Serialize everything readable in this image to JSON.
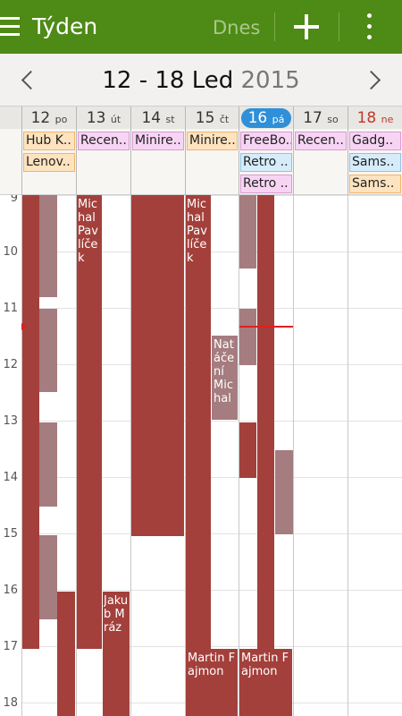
{
  "actionbar": {
    "title": "Týden",
    "today_label": "Dnes",
    "menu_icon": "hamburger-menu-icon",
    "add_icon": "plus-icon",
    "more_icon": "overflow-menu-icon",
    "background": "#4e8a16"
  },
  "range": {
    "dates": "12 - 18 Led",
    "year": "2015",
    "prev_icon": "chevron-left-icon",
    "next_icon": "chevron-right-icon"
  },
  "days": [
    {
      "num": "12",
      "wd": "po"
    },
    {
      "num": "13",
      "wd": "út"
    },
    {
      "num": "14",
      "wd": "st"
    },
    {
      "num": "15",
      "wd": "čt"
    },
    {
      "num": "16",
      "wd": "pá",
      "today": true
    },
    {
      "num": "17",
      "wd": "so"
    },
    {
      "num": "18",
      "wd": "ne",
      "sunday": true
    }
  ],
  "allday": [
    [
      {
        "label": "Hub K..",
        "color": "orange"
      },
      {
        "label": "Lenov..",
        "color": "orange"
      }
    ],
    [
      {
        "label": "Recen..",
        "color": "pink"
      }
    ],
    [
      {
        "label": "Minire..",
        "color": "pink"
      }
    ],
    [
      {
        "label": "Minire..",
        "color": "orange"
      }
    ],
    [
      {
        "label": "FreeBo..",
        "color": "pink"
      },
      {
        "label": "Retro ..",
        "color": "blue"
      },
      {
        "label": "Retro ..",
        "color": "pink"
      }
    ],
    [
      {
        "label": "Recen..",
        "color": "pink"
      }
    ],
    [
      {
        "label": "Gadg..",
        "color": "pink"
      },
      {
        "label": "Sams..",
        "color": "blue"
      },
      {
        "label": "Sams..",
        "color": "orange"
      }
    ]
  ],
  "hours": [
    "9",
    "10",
    "11",
    "12",
    "13",
    "14",
    "15",
    "16",
    "17",
    "18"
  ],
  "events": {
    "michal_pavlicek": "Michal Pavlíček",
    "nataceni_michal": "Natáčení Michal",
    "jakub_mraz": "Jakub Mráz",
    "martin_fajmon": "Martin Fajmon"
  },
  "colors": {
    "event_dark": "#a3403b",
    "event_light": "#a57c7f",
    "today_pill": "#2f8fd8",
    "now_line": "#e02020"
  }
}
